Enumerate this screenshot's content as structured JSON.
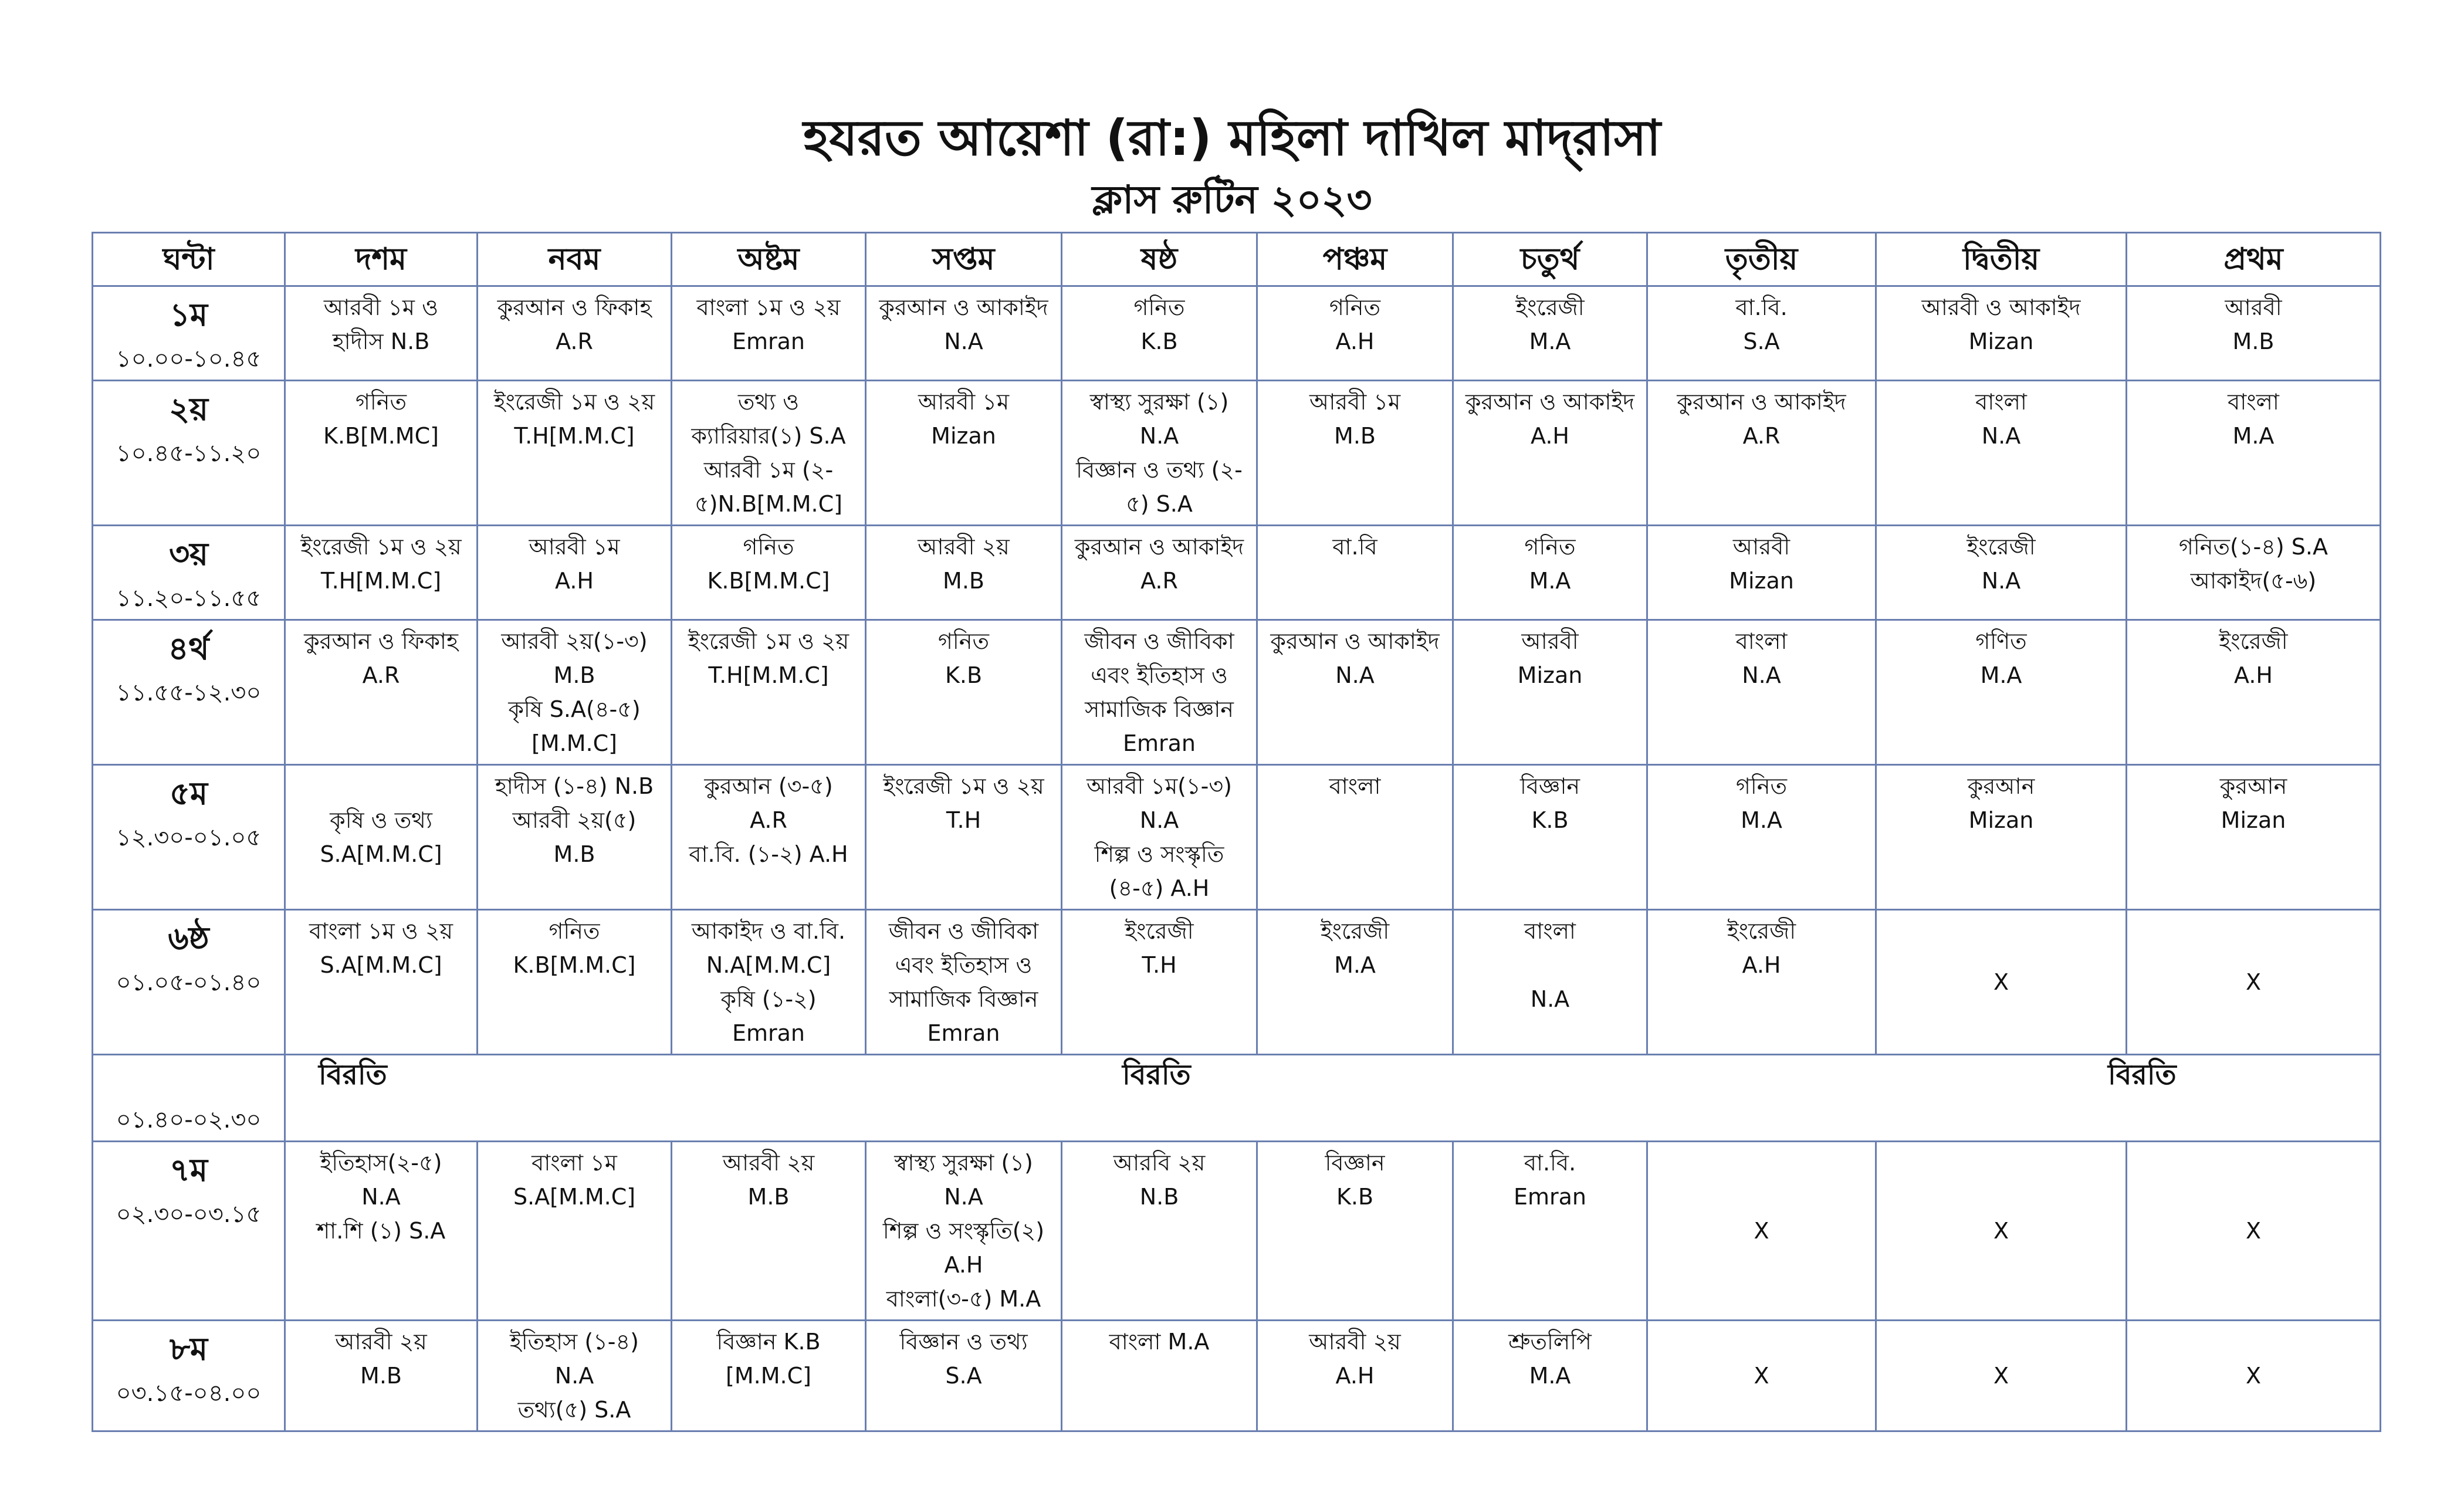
{
  "header": {
    "title": "হযরত আয়েশা (রা:) মহিলা দাখিল মাদ্‌রাসা",
    "subtitle": "ক্লাস রুটিন ২০২৩"
  },
  "table": {
    "columns": [
      "ঘন্টা",
      "দশম",
      "নবম",
      "অষ্টম",
      "সপ্তম",
      "ষষ্ঠ",
      "পঞ্চম",
      "চতুর্থ",
      "তৃতীয়",
      "দ্বিতীয়",
      "প্রথম"
    ],
    "rows": [
      {
        "hour": "১ম",
        "time": "১০.০০-১০.৪৫",
        "cells": [
          [
            "আরবী ১ম ও",
            "হাদীস N.B"
          ],
          [
            "কুরআন ও ফিকাহ",
            "A.R"
          ],
          [
            "বাংলা ১ম ও ২য়",
            "Emran"
          ],
          [
            "কুরআন ও আকাইদ",
            "N.A"
          ],
          [
            "গনিত",
            "K.B"
          ],
          [
            "গনিত",
            "A.H"
          ],
          [
            "ইংরেজী",
            "M.A"
          ],
          [
            "বা.বি.",
            "S.A"
          ],
          [
            "আরবী ও আকাইদ",
            "Mizan"
          ],
          [
            "আরবী",
            "M.B"
          ]
        ]
      },
      {
        "hour": "২য়",
        "time": "১০.৪৫-১১.২০",
        "cells": [
          [
            "গনিত",
            "K.B[M.MC]"
          ],
          [
            "ইংরেজী ১ম ও ২য়",
            "T.H[M.M.C]"
          ],
          [
            "তথ্য ও",
            "ক্যারিয়ার(১) S.A",
            "আরবী ১ম (২-",
            "৫)N.B[M.M.C]"
          ],
          [
            "আরবী ১ম",
            "Mizan"
          ],
          [
            "স্বাস্থ্য সুরক্ষা (১)",
            "N.A",
            "বিজ্ঞান ও তথ্য (২-",
            "৫) S.A"
          ],
          [
            "আরবী ১ম",
            "M.B"
          ],
          [
            "কুরআন ও আকাইদ",
            "A.H"
          ],
          [
            "কুরআন ও আকাইদ",
            "A.R"
          ],
          [
            "বাংলা",
            "N.A"
          ],
          [
            "বাংলা",
            "M.A"
          ]
        ]
      },
      {
        "hour": "৩য়",
        "time": "১১.২০-১১.৫৫",
        "cells": [
          [
            "ইংরেজী ১ম ও ২য়",
            "T.H[M.M.C]"
          ],
          [
            "আরবী ১ম",
            "A.H"
          ],
          [
            "গনিত",
            "K.B[M.M.C]"
          ],
          [
            "আরবী ২য়",
            "M.B"
          ],
          [
            "কুরআন ও আকাইদ",
            "A.R"
          ],
          [
            "বা.বি"
          ],
          [
            "গনিত",
            "M.A"
          ],
          [
            "আরবী",
            "Mizan"
          ],
          [
            "ইংরেজী",
            "N.A"
          ],
          [
            "গনিত(১-৪) S.A",
            "আকাইদ(৫-৬)"
          ]
        ]
      },
      {
        "hour": "৪র্থ",
        "time": "১১.৫৫-১২.৩০",
        "cells": [
          [
            "কুরআন ও ফিকাহ",
            "A.R"
          ],
          [
            "আরবী ২য়(১-৩)",
            "M.B",
            "কৃষি   S.A(৪-৫)",
            "[M.M.C]"
          ],
          [
            "ইংরেজী ১ম ও ২য়",
            "T.H[M.M.C]"
          ],
          [
            "গনিত",
            "K.B"
          ],
          [
            "জীবন ও জীবিকা",
            "এবং ইতিহাস ও",
            "সামাজিক বিজ্ঞান",
            "Emran"
          ],
          [
            "কুরআন ও আকাইদ",
            "N.A"
          ],
          [
            "আরবী",
            "Mizan"
          ],
          [
            "বাংলা",
            "N.A"
          ],
          [
            "গণিত",
            "M.A"
          ],
          [
            "ইংরেজী",
            "A.H"
          ]
        ]
      },
      {
        "hour": "৫ম",
        "time": "১২.৩০-০১.০৫",
        "cells": [
          [
            "",
            "কৃষি ও তথ্য",
            "S.A[M.M.C]"
          ],
          [
            "হাদীস (১-৪) N.B",
            "আরবী ২য়(৫)",
            "M.B"
          ],
          [
            "কুরআন (৩-৫)",
            "A.R",
            "বা.বি. (১-২) A.H"
          ],
          [
            "ইংরেজী ১ম ও ২য়",
            "T.H"
          ],
          [
            "আরবী ১ম(১-৩)",
            "N.A",
            "শিল্প ও সংস্কৃতি",
            "(৪-৫) A.H"
          ],
          [
            "বাংলা"
          ],
          [
            "বিজ্ঞান",
            "K.B"
          ],
          [
            "গনিত",
            "M.A"
          ],
          [
            "কুরআন",
            "Mizan"
          ],
          [
            "কুরআন",
            "Mizan"
          ]
        ]
      },
      {
        "hour": "৬ষ্ঠ",
        "time": "০১.০৫-০১.৪০",
        "cells": [
          [
            "বাংলা ১ম ও ২য়",
            "S.A[M.M.C]"
          ],
          [
            "গনিত",
            "K.B[M.M.C]"
          ],
          [
            "আকাইদ ও বা.বি.",
            "N.A[M.M.C]",
            "কৃষি (১-২)",
            "Emran"
          ],
          [
            "জীবন ও জীবিকা",
            "এবং ইতিহাস ও",
            "সামাজিক বিজ্ঞান",
            "Emran"
          ],
          [
            "ইংরেজী",
            "T.H"
          ],
          [
            "ইংরেজী",
            "M.A"
          ],
          [
            "বাংলা",
            "",
            "N.A"
          ],
          [
            "ইংরেজী",
            "A.H"
          ],
          [
            "X"
          ],
          [
            "X"
          ]
        ]
      }
    ],
    "break_row": {
      "time": "০১.৪০-০২.৩০",
      "labels": [
        "বিরতি",
        "বিরতি",
        "বিরতি"
      ]
    },
    "rows_after": [
      {
        "hour": "৭ম",
        "time": "০২.৩০-০৩.১৫",
        "cells": [
          [
            "ইতিহাস(২-৫)",
            "N.A",
            "শা.শি (১) S.A"
          ],
          [
            "বাংলা ১ম",
            "S.A[M.M.C]"
          ],
          [
            "আরবী ২য়",
            "M.B"
          ],
          [
            "স্বাস্থ্য সুরক্ষা (১)",
            "N.A",
            "শিল্প ও সংস্কৃতি(২)",
            "A.H",
            "বাংলা(৩-৫) M.A"
          ],
          [
            "আরবি ২য়",
            "N.B"
          ],
          [
            "বিজ্ঞান",
            "K.B"
          ],
          [
            "বা.বি.",
            "Emran"
          ],
          [
            "X"
          ],
          [
            "X"
          ],
          [
            "X"
          ]
        ]
      },
      {
        "hour": "৮ম",
        "time": "০৩.১৫-০৪.০০",
        "cells": [
          [
            "আরবী ২য়",
            "M.B"
          ],
          [
            "ইতিহাস (১-৪)",
            "N.A",
            "তথ্য(৫) S.A"
          ],
          [
            "বিজ্ঞান  K.B",
            "[M.M.C]"
          ],
          [
            "বিজ্ঞান ও তথ্য",
            "S.A"
          ],
          [
            "বাংলা M.A"
          ],
          [
            "আরবী ২য়",
            "A.H"
          ],
          [
            "শ্রুতলিপি",
            "M.A"
          ],
          [
            "X"
          ],
          [
            "X"
          ],
          [
            "X"
          ]
        ]
      }
    ]
  }
}
